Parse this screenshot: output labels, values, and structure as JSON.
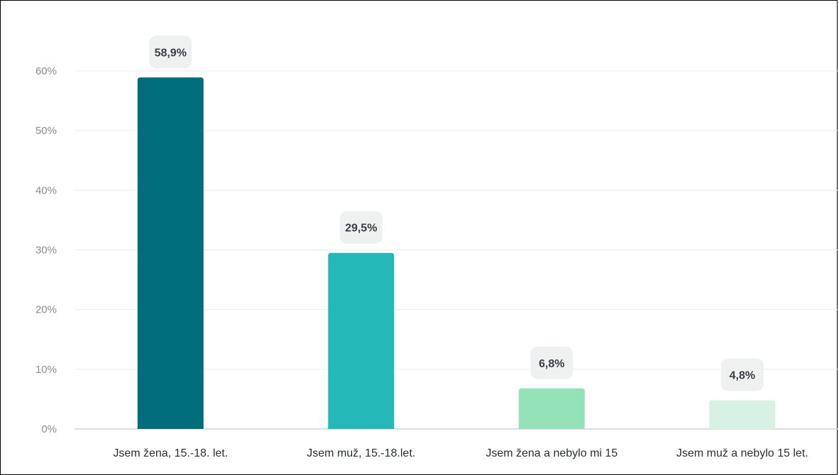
{
  "chart_data": {
    "type": "bar",
    "categories": [
      "Jsem žena, 15.-18. let.",
      "Jsem muž, 15.-18.let.",
      "Jsem žena a nebylo mi 15",
      "Jsem muž a nebylo 15 let."
    ],
    "values": [
      58.9,
      29.5,
      6.8,
      4.8
    ],
    "data_labels": [
      "58,9%",
      "29,5%",
      "6,8%",
      "4,8%"
    ],
    "bar_colors": [
      "#006d7d",
      "#25b8b9",
      "#93e2b8",
      "#d8f1e5"
    ],
    "ylim": [
      0,
      60
    ],
    "yticks": [
      0,
      10,
      20,
      30,
      40,
      50,
      60
    ],
    "ytick_labels": [
      "0%",
      "10%",
      "20%",
      "30%",
      "40%",
      "50%",
      "60%"
    ],
    "grid": true,
    "legend": "none",
    "title": "",
    "xlabel": "",
    "ylabel": ""
  }
}
